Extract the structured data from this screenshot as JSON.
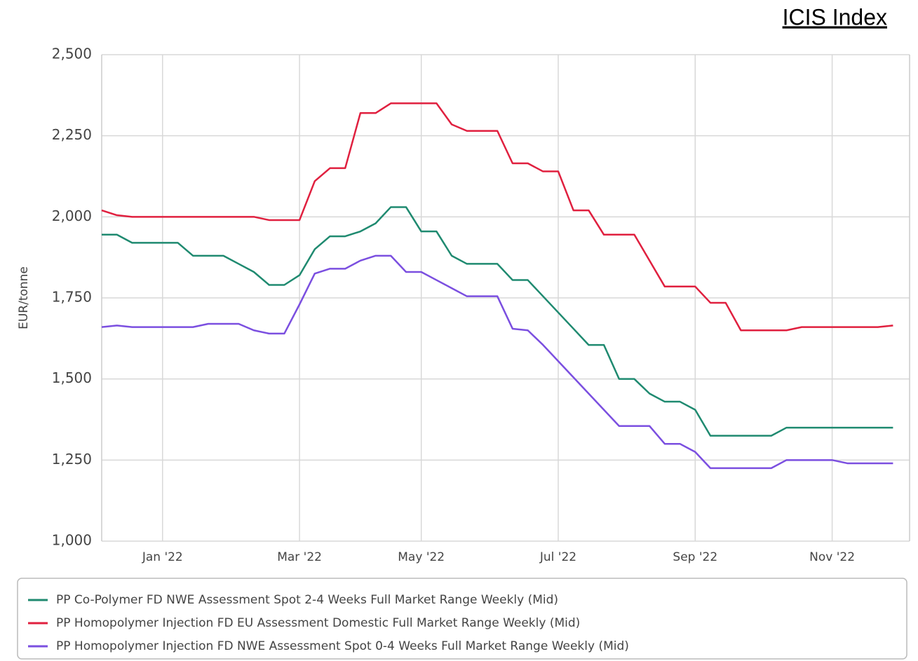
{
  "header": {
    "title": "ICIS Index"
  },
  "chart_data": {
    "type": "line",
    "y_label": "EUR/tonne",
    "categories": [
      null,
      null,
      null,
      null,
      "Jan '22",
      null,
      null,
      null,
      null,
      null,
      null,
      null,
      null,
      "Mar '22",
      null,
      null,
      null,
      null,
      null,
      null,
      null,
      "May '22",
      null,
      null,
      null,
      null,
      null,
      null,
      null,
      null,
      "Jul '22",
      null,
      null,
      null,
      null,
      null,
      null,
      null,
      null,
      "Sep '22",
      null,
      null,
      null,
      null,
      null,
      null,
      null,
      null,
      "Nov '22",
      null,
      null,
      null,
      null
    ],
    "series": [
      {
        "name": "PP Co-Polymer FD NWE Assessment Spot 2-4 Weeks Full Market Range Weekly (Mid)",
        "color": "#1f8a70",
        "values": [
          1945,
          1945,
          1920,
          1920,
          1920,
          1920,
          1880,
          1880,
          1880,
          1855,
          1830,
          1790,
          1790,
          1820,
          1900,
          1940,
          1940,
          1955,
          1980,
          2030,
          2030,
          1955,
          1955,
          1880,
          1855,
          1855,
          1855,
          1805,
          1805,
          1755,
          1705,
          1655,
          1605,
          1605,
          1500,
          1500,
          1455,
          1430,
          1430,
          1405,
          1325,
          1325,
          1325,
          1325,
          1325,
          1350,
          1350,
          1350,
          1350,
          1350,
          1350,
          1350,
          1350
        ]
      },
      {
        "name": "PP Homopolymer Injection FD EU Assessment Domestic Full Market Range Weekly (Mid)",
        "color": "#e0203f",
        "values": [
          2020,
          2005,
          2000,
          2000,
          2000,
          2000,
          2000,
          2000,
          2000,
          2000,
          2000,
          1990,
          1990,
          1990,
          2110,
          2150,
          2150,
          2320,
          2320,
          2350,
          2350,
          2350,
          2350,
          2285,
          2265,
          2265,
          2265,
          2165,
          2165,
          2140,
          2140,
          2020,
          2020,
          1945,
          1945,
          1945,
          1865,
          1785,
          1785,
          1785,
          1735,
          1735,
          1650,
          1650,
          1650,
          1650,
          1660,
          1660,
          1660,
          1660,
          1660,
          1660,
          1665
        ]
      },
      {
        "name": "PP Homopolymer Injection FD NWE Assessment Spot 0-4 Weeks Full Market Range Weekly (Mid)",
        "color": "#7b4fe0",
        "values": [
          1660,
          1665,
          1660,
          1660,
          1660,
          1660,
          1660,
          1670,
          1670,
          1670,
          1650,
          1640,
          1640,
          1730,
          1825,
          1840,
          1840,
          1865,
          1880,
          1880,
          1830,
          1830,
          1805,
          1780,
          1755,
          1755,
          1755,
          1655,
          1650,
          1605,
          1555,
          1505,
          1455,
          1405,
          1355,
          1355,
          1355,
          1300,
          1300,
          1275,
          1225,
          1225,
          1225,
          1225,
          1225,
          1250,
          1250,
          1250,
          1250,
          1240,
          1240,
          1240,
          1240
        ]
      }
    ],
    "ylim": [
      1000,
      2500
    ],
    "yticks": [
      {
        "value": 1000,
        "label": "1,000"
      },
      {
        "value": 1250,
        "label": "1,250"
      },
      {
        "value": 1500,
        "label": "1,500"
      },
      {
        "value": 1750,
        "label": "1,750"
      },
      {
        "value": 2000,
        "label": "2,000"
      },
      {
        "value": 2250,
        "label": "2,250"
      },
      {
        "value": 2500,
        "label": "2,500"
      }
    ],
    "grid": true,
    "legend": "bottom"
  }
}
